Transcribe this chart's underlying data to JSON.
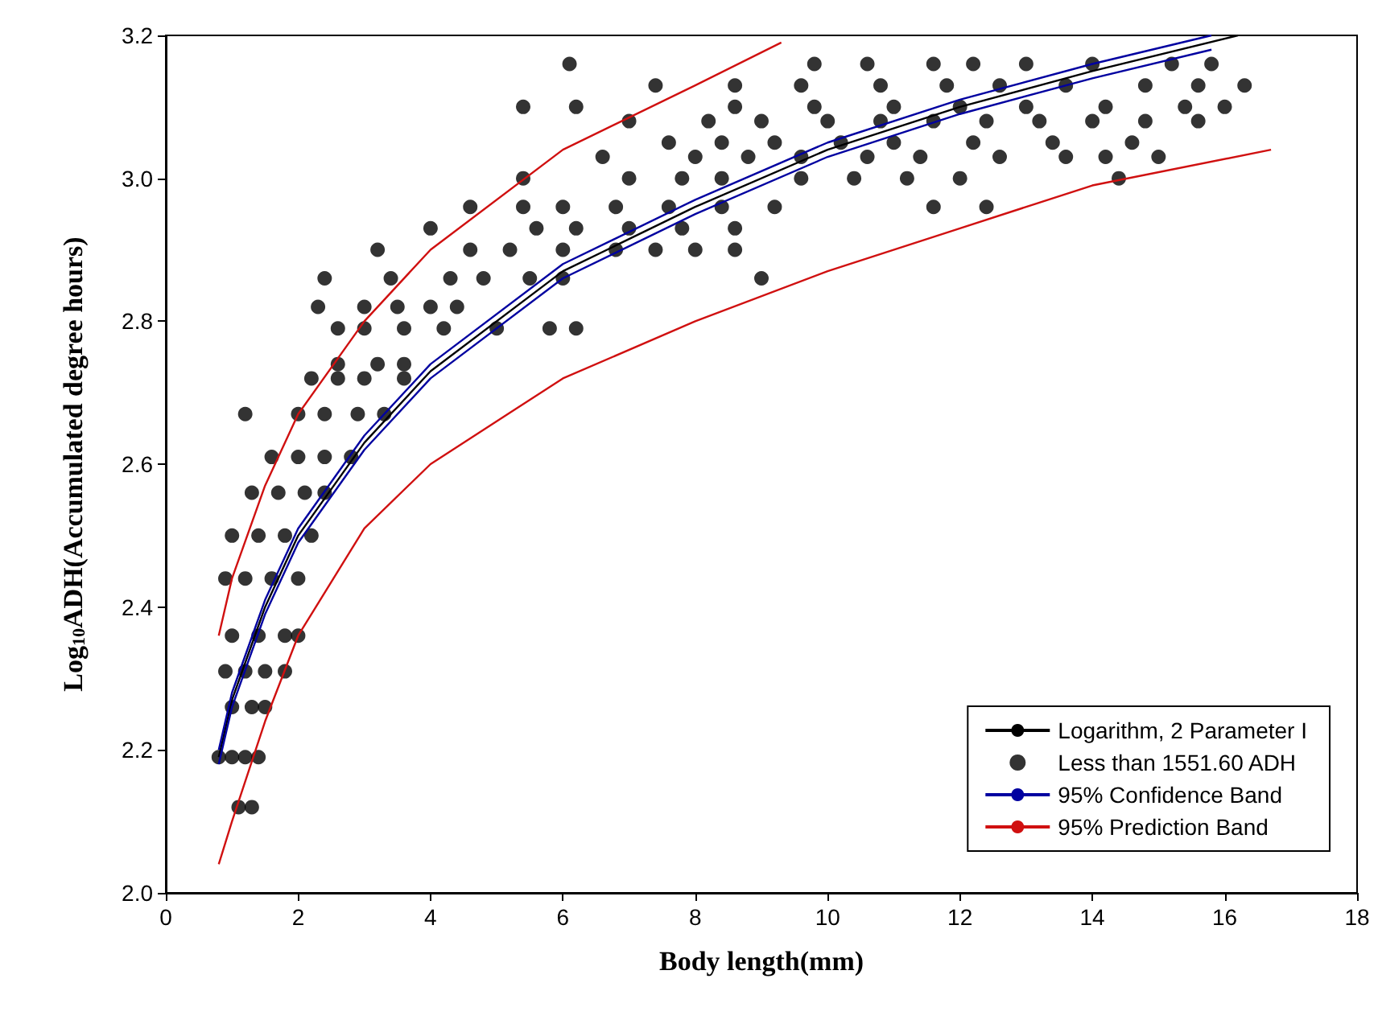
{
  "chart_data": {
    "type": "scatter",
    "xlabel": "Body length(mm)",
    "ylabel": "Log$_{10}$ADH(Accumulated degree hours)",
    "xlim": [
      0,
      18
    ],
    "xticks": [
      0,
      2,
      4,
      6,
      8,
      10,
      12,
      14,
      16,
      18
    ],
    "ylim": [
      2,
      3.2
    ],
    "yticks": [
      {
        "value": 2,
        "label": "2.0"
      },
      {
        "value": 2.2,
        "label": "2.2"
      },
      {
        "value": 2.4,
        "label": "2.4"
      },
      {
        "value": 2.6,
        "label": "2.6"
      },
      {
        "value": 2.8,
        "label": "2.8"
      },
      {
        "value": 3,
        "label": "3.0"
      },
      {
        "value": 3.2,
        "label": "3.2"
      }
    ],
    "grid": false,
    "legend": "bottom right",
    "series": [
      {
        "name": "Logarithm, 2 Parameter I",
        "type": "line",
        "marker": "none",
        "color": "#000000",
        "x": [
          0.8,
          1,
          1.5,
          2,
          3,
          4,
          6,
          8,
          10,
          12,
          14,
          16.2
        ],
        "values": [
          2.19,
          2.27,
          2.4,
          2.5,
          2.63,
          2.73,
          2.87,
          2.96,
          3.04,
          3.1,
          3.15,
          3.2
        ]
      },
      {
        "name": "Less than 1551.60 ADH",
        "marker": "circle",
        "color": "#000000",
        "x": [
          1.1,
          1.3,
          0.8,
          1.0,
          1.2,
          1.4,
          1.0,
          1.3,
          1.5,
          0.9,
          1.2,
          1.5,
          1.8,
          1.0,
          1.4,
          1.8,
          2.0,
          0.9,
          1.2,
          1.6,
          2.0,
          1.0,
          1.4,
          1.8,
          2.2,
          1.3,
          1.7,
          2.1,
          2.4,
          1.6,
          2.0,
          2.4,
          2.8,
          1.2,
          2.0,
          2.4,
          2.9,
          3.3,
          2.2,
          2.6,
          3.0,
          3.6,
          2.6,
          3.2,
          3.6,
          2.6,
          3.0,
          3.6,
          4.2,
          5.0,
          5.8,
          6.2,
          2.3,
          3.0,
          3.5,
          4.0,
          4.4,
          2.4,
          3.4,
          4.3,
          4.8,
          5.5,
          6.0,
          9.0,
          3.2,
          4.6,
          5.2,
          6.0,
          6.8,
          7.4,
          8.0,
          8.6,
          4.0,
          5.6,
          6.2,
          7.0,
          7.8,
          8.6,
          4.6,
          5.4,
          6.0,
          6.8,
          7.6,
          8.4,
          9.2,
          11.6,
          12.4,
          5.4,
          7.0,
          7.8,
          8.4,
          9.6,
          10.4,
          11.2,
          12.0,
          14.4,
          6.6,
          8.0,
          8.8,
          9.6,
          10.6,
          11.4,
          12.6,
          13.6,
          14.2,
          15.0,
          7.6,
          8.4,
          9.2,
          10.2,
          11.0,
          12.2,
          13.4,
          14.6,
          7.0,
          8.2,
          9.0,
          10.0,
          10.8,
          11.6,
          12.4,
          13.2,
          14.0,
          14.8,
          15.6,
          5.4,
          6.2,
          8.6,
          9.8,
          11.0,
          12.0,
          13.0,
          14.2,
          15.4,
          16.0,
          7.4,
          8.6,
          9.6,
          10.8,
          11.8,
          12.6,
          13.6,
          14.8,
          15.6,
          16.3,
          6.1,
          9.8,
          10.6,
          11.6,
          12.2,
          13.0,
          14.0,
          15.2,
          15.8
        ],
        "values": [
          2.12,
          2.12,
          2.19,
          2.19,
          2.19,
          2.19,
          2.26,
          2.26,
          2.26,
          2.31,
          2.31,
          2.31,
          2.31,
          2.36,
          2.36,
          2.36,
          2.36,
          2.44,
          2.44,
          2.44,
          2.44,
          2.5,
          2.5,
          2.5,
          2.5,
          2.56,
          2.56,
          2.56,
          2.56,
          2.61,
          2.61,
          2.61,
          2.61,
          2.67,
          2.67,
          2.67,
          2.67,
          2.67,
          2.72,
          2.72,
          2.72,
          2.72,
          2.74,
          2.74,
          2.74,
          2.79,
          2.79,
          2.79,
          2.79,
          2.79,
          2.79,
          2.79,
          2.82,
          2.82,
          2.82,
          2.82,
          2.82,
          2.86,
          2.86,
          2.86,
          2.86,
          2.86,
          2.86,
          2.86,
          2.9,
          2.9,
          2.9,
          2.9,
          2.9,
          2.9,
          2.9,
          2.9,
          2.93,
          2.93,
          2.93,
          2.93,
          2.93,
          2.93,
          2.96,
          2.96,
          2.96,
          2.96,
          2.96,
          2.96,
          2.96,
          2.96,
          2.96,
          3.0,
          3.0,
          3.0,
          3.0,
          3.0,
          3.0,
          3.0,
          3.0,
          3.0,
          3.03,
          3.03,
          3.03,
          3.03,
          3.03,
          3.03,
          3.03,
          3.03,
          3.03,
          3.03,
          3.05,
          3.05,
          3.05,
          3.05,
          3.05,
          3.05,
          3.05,
          3.05,
          3.08,
          3.08,
          3.08,
          3.08,
          3.08,
          3.08,
          3.08,
          3.08,
          3.08,
          3.08,
          3.08,
          3.1,
          3.1,
          3.1,
          3.1,
          3.1,
          3.1,
          3.1,
          3.1,
          3.1,
          3.1,
          3.13,
          3.13,
          3.13,
          3.13,
          3.13,
          3.13,
          3.13,
          3.13,
          3.13,
          3.13,
          3.16,
          3.16,
          3.16,
          3.16,
          3.16,
          3.16,
          3.16,
          3.16,
          3.16
        ]
      },
      {
        "name": "95% Confidence Band",
        "type": "line",
        "marker": "none",
        "color": "#0000a0",
        "x": [
          0.8,
          1,
          1.5,
          2,
          3,
          4,
          6,
          8,
          10,
          12,
          14,
          15.8
        ],
        "values": [
          2.2,
          2.28,
          2.41,
          2.51,
          2.64,
          2.74,
          2.88,
          2.97,
          3.05,
          3.11,
          3.16,
          3.2
        ]
      },
      {
        "type": "line",
        "marker": "none",
        "color": "#0000a0",
        "x": [
          0.8,
          1,
          1.5,
          2,
          3,
          4,
          6,
          8,
          10,
          12,
          14,
          15.8
        ],
        "values": [
          2.18,
          2.26,
          2.39,
          2.49,
          2.62,
          2.72,
          2.86,
          2.95,
          3.03,
          3.09,
          3.14,
          3.18
        ]
      },
      {
        "name": "95% Prediction Band",
        "type": "line",
        "marker": "none",
        "color": "#d01010",
        "x": [
          0.8,
          1,
          1.5,
          2,
          3,
          4,
          6,
          8,
          9.3
        ],
        "values": [
          2.36,
          2.44,
          2.57,
          2.67,
          2.8,
          2.9,
          3.04,
          3.13,
          3.19
        ]
      },
      {
        "type": "line",
        "marker": "none",
        "color": "#d01010",
        "x": [
          0.8,
          1,
          1.5,
          2,
          3,
          4,
          6,
          8,
          10,
          12,
          14,
          16.7
        ],
        "values": [
          2.04,
          2.1,
          2.24,
          2.36,
          2.51,
          2.6,
          2.72,
          2.8,
          2.87,
          2.93,
          2.99,
          3.04
        ]
      }
    ]
  }
}
